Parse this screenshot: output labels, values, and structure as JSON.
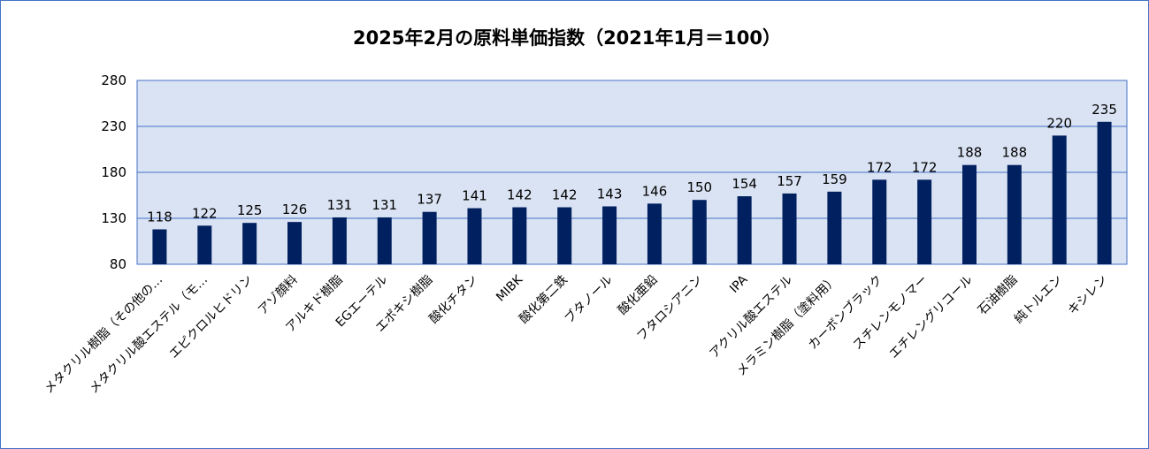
{
  "chart_data": {
    "type": "bar",
    "title": "2025年2月の原料単価指数（2021年1月＝100）",
    "xlabel": "",
    "ylabel": "",
    "ylim": [
      80,
      280
    ],
    "yticks": [
      80,
      130,
      180,
      230,
      280
    ],
    "grid": true,
    "legend": "none",
    "colors": {
      "bar": "#002060",
      "plot_bg": "#dae3f3",
      "grid": "#4472c4",
      "border": "#4472c4"
    },
    "categories": [
      "メタクリル樹脂（その他の…",
      "メタクリル酸エステル（モ…",
      "エピクロルヒドリン",
      "アゾ顔料",
      "アルキド樹脂",
      "EGエーテル",
      "エポキシ樹脂",
      "酸化チタン",
      "MIBK",
      "酸化第二鉄",
      "ブタノール",
      "酸化亜鉛",
      "フタロシアニン",
      "IPA",
      "アクリル酸エステル",
      "メラミン樹脂（塗料用）",
      "カーボンブラック",
      "スチレンモノマー",
      "エチレングリコール",
      "石油樹脂",
      "純トルエン",
      "キシレン"
    ],
    "values": [
      118,
      122,
      125,
      126,
      131,
      131,
      137,
      141,
      142,
      142,
      143,
      146,
      150,
      154,
      157,
      159,
      172,
      172,
      188,
      188,
      220,
      235
    ]
  }
}
